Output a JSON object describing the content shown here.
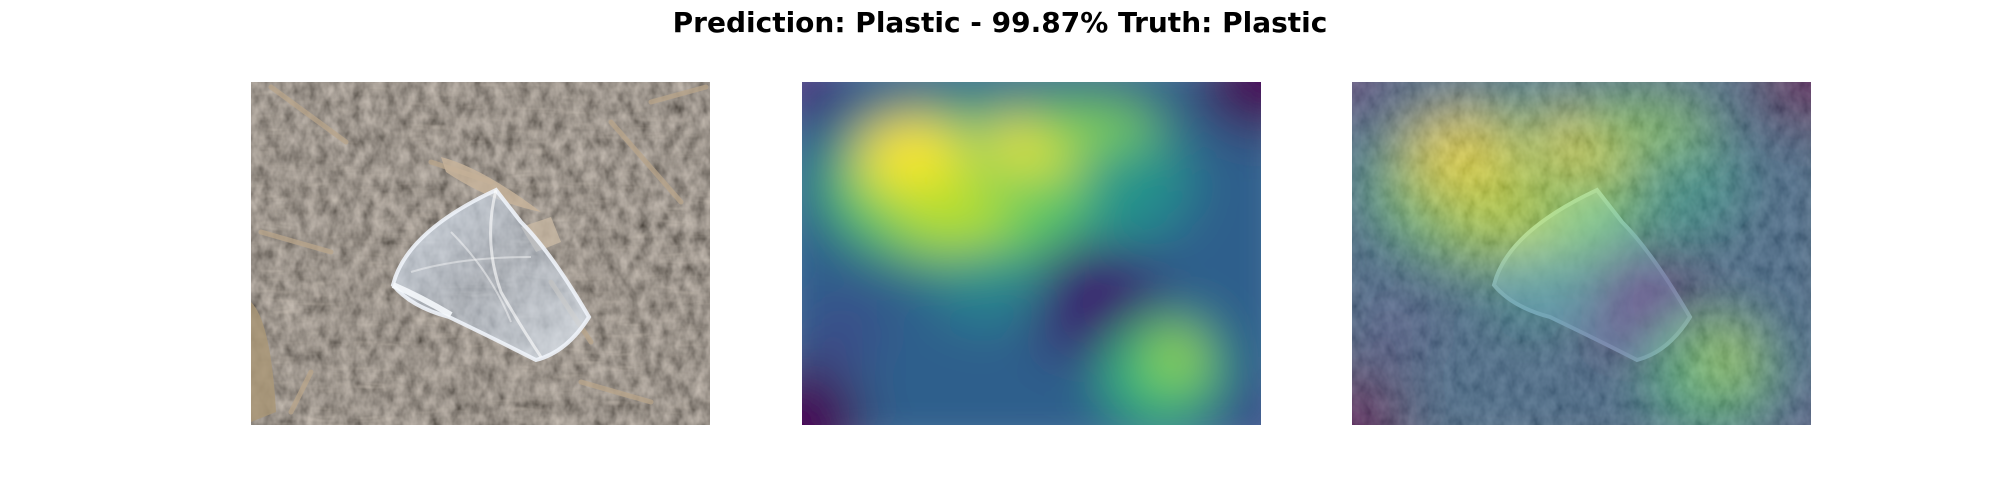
{
  "figure": {
    "title": "Prediction: Plastic - 99.87% Truth: Plastic"
  },
  "panels": [
    {
      "name": "original-image",
      "content": "photo of a crumpled clear plastic cup on wood-chip mulch"
    },
    {
      "name": "attention-heatmap",
      "colormap": "viridis"
    },
    {
      "name": "heatmap-overlay",
      "colormap": "viridis"
    }
  ],
  "colors": {
    "viridis_dark": "#440154",
    "viridis_blue": "#3b528b",
    "viridis_teal": "#21918c",
    "viridis_green": "#5ec962",
    "viridis_yellow": "#fde725",
    "mulch_dark": "#3a312a",
    "mulch_light": "#8c7f70"
  }
}
